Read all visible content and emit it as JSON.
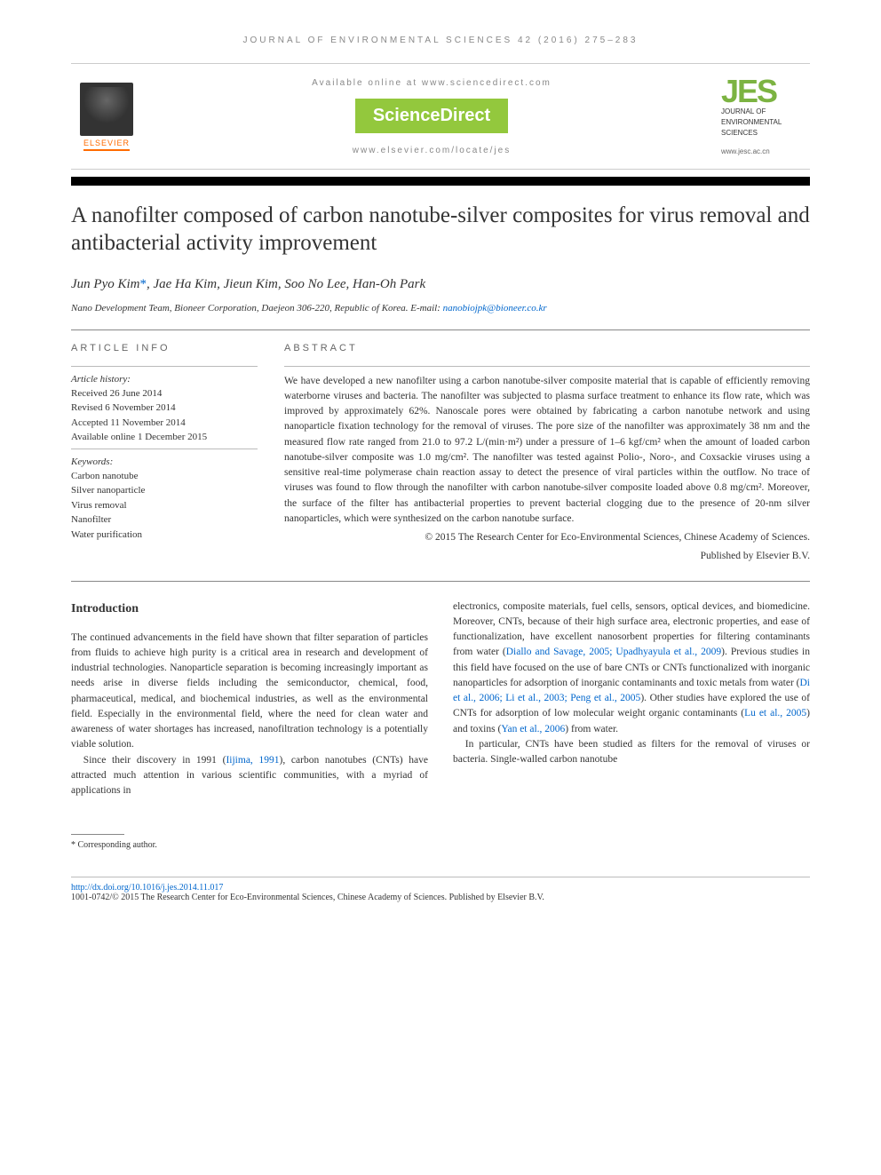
{
  "journal_ref": "JOURNAL OF ENVIRONMENTAL SCIENCES 42 (2016) 275–283",
  "header": {
    "elsevier": "ELSEVIER",
    "available_online": "Available online at www.sciencedirect.com",
    "sciencedirect": "ScienceDirect",
    "journal_url": "www.elsevier.com/locate/jes",
    "jes_logo": "JES",
    "jes_subtitle_1": "JOURNAL OF",
    "jes_subtitle_2": "ENVIRONMENTAL",
    "jes_subtitle_3": "SCIENCES",
    "jes_url": "www.jesc.ac.cn"
  },
  "title": "A nanofilter composed of carbon nanotube-silver composites for virus removal and antibacterial activity improvement",
  "authors": "Jun Pyo Kim*, Jae Ha Kim, Jieun Kim, Soo No Lee, Han-Oh Park",
  "affiliation": "Nano Development Team, Bioneer Corporation, Daejeon 306-220, Republic of Korea. E-mail: ",
  "email": "nanobiojpk@bioneer.co.kr",
  "article_info_header": "ARTICLE INFO",
  "abstract_header": "ABSTRACT",
  "history": {
    "label": "Article history:",
    "received": "Received 26 June 2014",
    "revised": "Revised 6 November 2014",
    "accepted": "Accepted 11 November 2014",
    "online": "Available online 1 December 2015"
  },
  "keywords": {
    "label": "Keywords:",
    "items": [
      "Carbon nanotube",
      "Silver nanoparticle",
      "Virus removal",
      "Nanofilter",
      "Water purification"
    ]
  },
  "abstract_text": "We have developed a new nanofilter using a carbon nanotube-silver composite material that is capable of efficiently removing waterborne viruses and bacteria. The nanofilter was subjected to plasma surface treatment to enhance its flow rate, which was improved by approximately 62%. Nanoscale pores were obtained by fabricating a carbon nanotube network and using nanoparticle fixation technology for the removal of viruses. The pore size of the nanofilter was approximately 38 nm and the measured flow rate ranged from 21.0 to 97.2 L/(min·m²) under a pressure of 1–6 kgf/cm² when the amount of loaded carbon nanotube-silver composite was 1.0 mg/cm². The nanofilter was tested against Polio-, Noro-, and Coxsackie viruses using a sensitive real-time polymerase chain reaction assay to detect the presence of viral particles within the outflow. No trace of viruses was found to flow through the nanofilter with carbon nanotube-silver composite loaded above 0.8 mg/cm². Moreover, the surface of the filter has antibacterial properties to prevent bacterial clogging due to the presence of 20-nm silver nanoparticles, which were synthesized on the carbon nanotube surface.",
  "copyright_1": "© 2015 The Research Center for Eco-Environmental Sciences, Chinese Academy of Sciences.",
  "copyright_2": "Published by Elsevier B.V.",
  "intro_heading": "Introduction",
  "intro_col1_p1": "The continued advancements in the field have shown that filter separation of particles from fluids to achieve high purity is a critical area in research and development of industrial technologies. Nanoparticle separation is becoming increasingly important as needs arise in diverse fields including the semiconductor, chemical, food, pharmaceutical, medical, and biochemical industries, as well as the environmental field. Especially in the environmental field, where the need for clean water and awareness of water shortages has increased, nanofiltration technology is a potentially viable solution.",
  "intro_col1_p2_a": "Since their discovery in 1991 (",
  "intro_col1_cite1": "Iijima, 1991",
  "intro_col1_p2_b": "), carbon nanotubes (CNTs) have attracted much attention in various scientific communities, with a myriad of applications in",
  "intro_col2_p1_a": "electronics, composite materials, fuel cells, sensors, optical devices, and biomedicine. Moreover, CNTs, because of their high surface area, electronic properties, and ease of functionalization, have excellent nanosorbent properties for filtering contaminants from water (",
  "intro_col2_cite1": "Diallo and Savage, 2005; Upadhyayula et al., 2009",
  "intro_col2_p1_b": "). Previous studies in this field have focused on the use of bare CNTs or CNTs functionalized with inorganic nanoparticles for adsorption of inorganic contaminants and toxic metals from water (",
  "intro_col2_cite2": "Di et al., 2006; Li et al., 2003; Peng et al., 2005",
  "intro_col2_p1_c": "). Other studies have explored the use of CNTs for adsorption of low molecular weight organic contaminants (",
  "intro_col2_cite3": "Lu et al., 2005",
  "intro_col2_p1_d": ") and toxins (",
  "intro_col2_cite4": "Yan et al., 2006",
  "intro_col2_p1_e": ") from water.",
  "intro_col2_p2": "In particular, CNTs have been studied as filters for the removal of viruses or bacteria. Single-walled carbon nanotube",
  "footnote": "* Corresponding author.",
  "doi": "http://dx.doi.org/10.1016/j.jes.2014.11.017",
  "footer_copy": "1001-0742/© 2015 The Research Center for Eco-Environmental Sciences, Chinese Academy of Sciences. Published by Elsevier B.V.",
  "colors": {
    "link": "#0066cc",
    "orange": "#ff6b00",
    "green": "#93c83d",
    "jes_green": "#7cb342"
  }
}
